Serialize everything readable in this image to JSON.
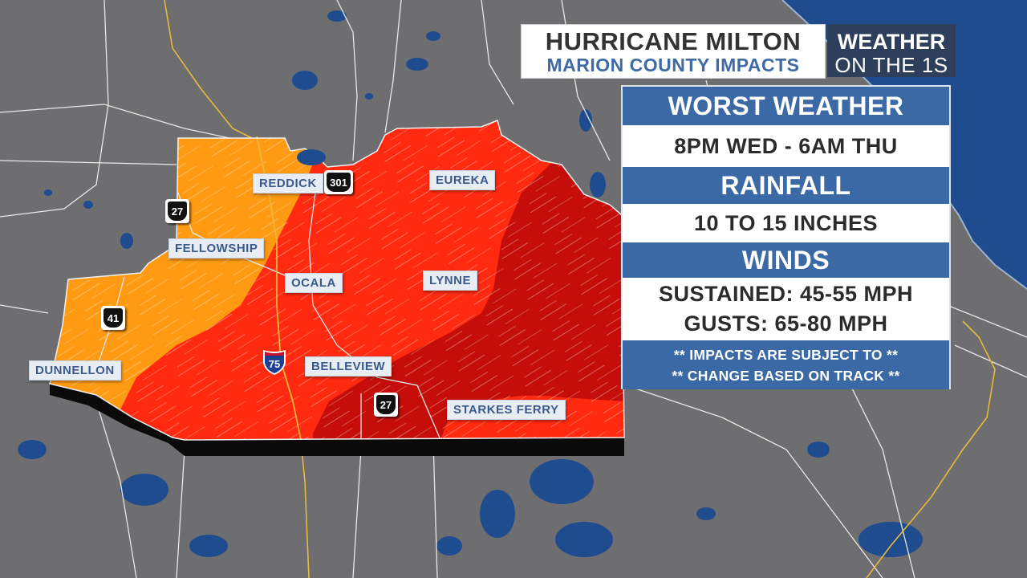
{
  "header": {
    "title": "HURRICANE MILTON",
    "subtitle": "MARION COUNTY IMPACTS",
    "brand_top": "WEATHER",
    "brand_bottom": "ON THE 1S"
  },
  "panel": {
    "worst_weather_label": "WORST WEATHER",
    "worst_weather_value": "8PM WED - 6AM THU",
    "rainfall_label": "RAINFALL",
    "rainfall_value": "10 TO 15 INCHES",
    "winds_label": "WINDS",
    "winds_sustained": "SUSTAINED: 45-55 MPH",
    "winds_gusts": "GUSTS: 65-80 MPH",
    "note_line1": "** IMPACTS ARE SUBJECT TO **",
    "note_line2": "** CHANGE BASED ON TRACK **"
  },
  "places": {
    "reddick": "REDDICK",
    "eureka": "EUREKA",
    "fellowship": "FELLOWSHIP",
    "ocala": "OCALA",
    "lynne": "LYNNE",
    "dunnellon": "DUNNELLON",
    "belleview": "BELLEVIEW",
    "starkes_ferry": "STARKES FERRY"
  },
  "routes": {
    "us27_north": "27",
    "us301": "301",
    "us41": "41",
    "i75": "75",
    "us27_south": "27"
  },
  "colors": {
    "land": "#6e6e70",
    "water": "#1f4b8f",
    "impact_orange": "#ff9a12",
    "impact_red": "#ff2a10",
    "impact_darkred": "#c50e0a",
    "panel_header": "#3b69a5"
  }
}
